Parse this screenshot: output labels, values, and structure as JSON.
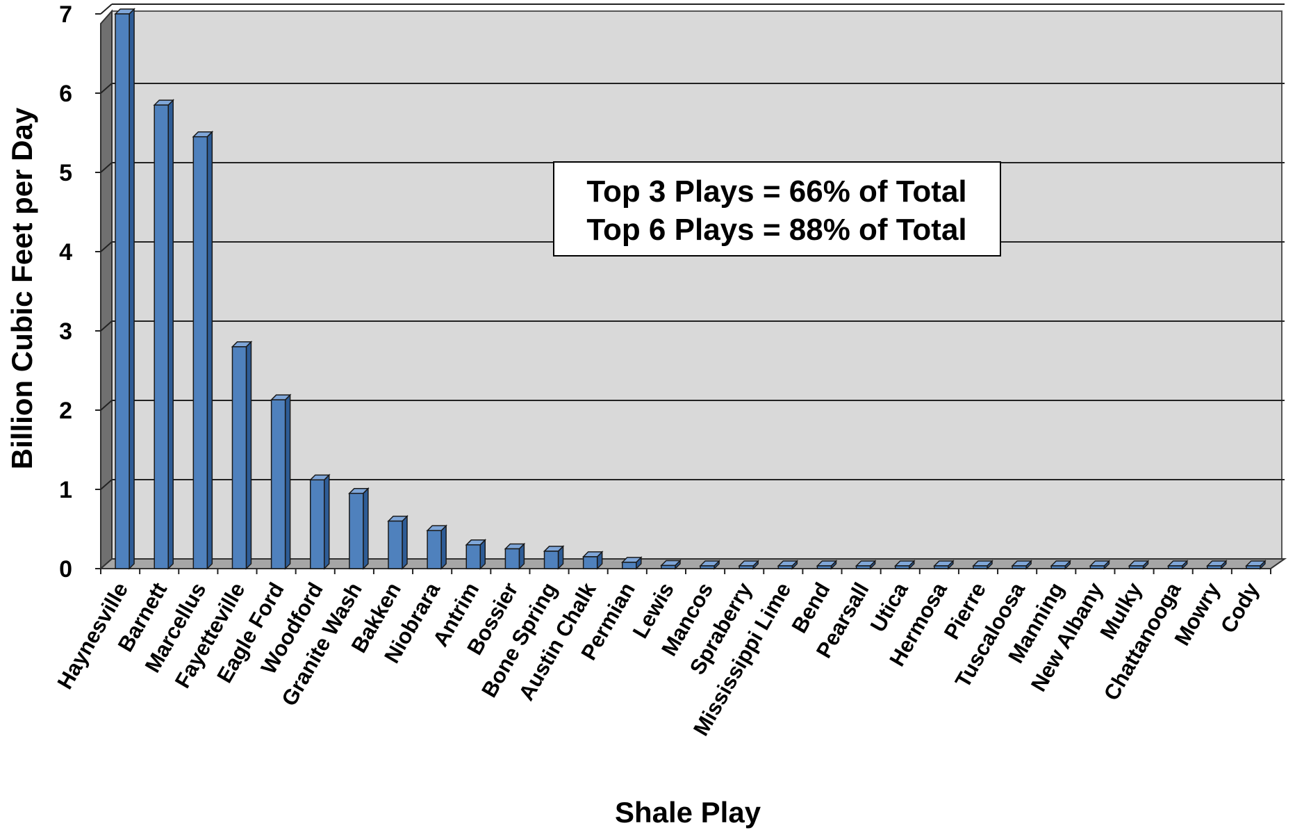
{
  "chart_data": {
    "type": "bar",
    "title": "",
    "xlabel": "Shale Play",
    "ylabel": "Billion Cubic Feet per Day",
    "ylim": [
      0,
      7
    ],
    "yticks": [
      "0",
      "1",
      "2",
      "3",
      "4",
      "5",
      "6",
      "7"
    ],
    "grid": true,
    "legend": "none",
    "categories": [
      "Haynesville",
      "Barnett",
      "Marcellus",
      "Fayetteville",
      "Eagle Ford",
      "Woodford",
      "Granite Wash",
      "Bakken",
      "Niobrara",
      "Antrim",
      "Bossier",
      "Bone Spring",
      "Austin Chalk",
      "Permian",
      "Lewis",
      "Mancos",
      "Spraberry",
      "Mississippi Lime",
      "Bend",
      "Pearsall",
      "Utica",
      "Hermosa",
      "Pierre",
      "Tuscaloosa",
      "Manning",
      "New Albany",
      "Mulky",
      "Chattanooga",
      "Mowry",
      "Cody"
    ],
    "values": [
      7.0,
      5.85,
      5.45,
      2.8,
      2.13,
      1.12,
      0.95,
      0.6,
      0.48,
      0.3,
      0.25,
      0.22,
      0.15,
      0.08,
      0.04,
      0.03,
      0.02,
      0.02,
      0.01,
      0.005,
      0.005,
      0.005,
      0.005,
      0.005,
      0.005,
      0.005,
      0.005,
      0.005,
      0.005,
      0.005
    ],
    "annotations": [
      "Top 3 Plays = 66% of Total",
      "Top 6 Plays = 88% of Total"
    ],
    "colors": {
      "bar_front": "#4F81BD",
      "bar_side": "#2E5C96",
      "bar_top": "#7FA6D8",
      "plot_back": "#D9D9D9",
      "side_wall": "#707070",
      "floor": "#A6A6A6"
    }
  }
}
